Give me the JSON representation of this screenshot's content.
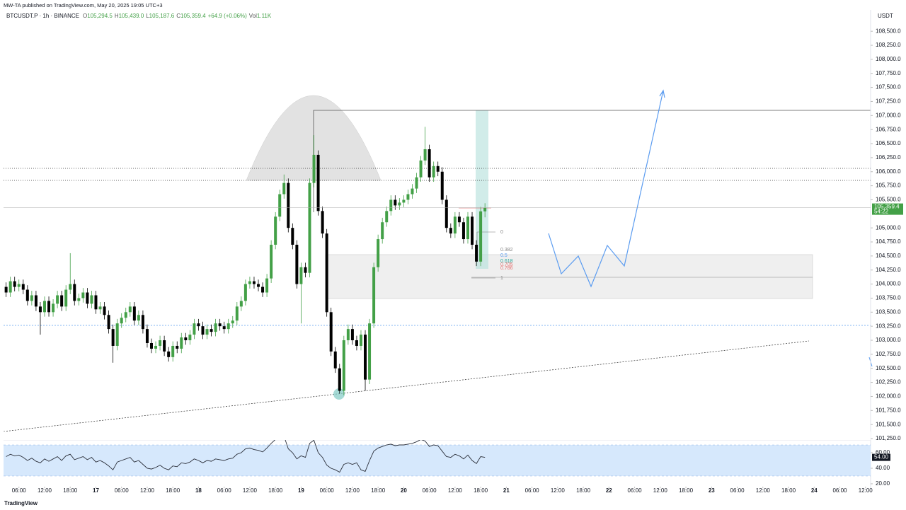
{
  "header": "MW-TA published on TradingView.com, May 20, 2025 19:05 UTC+3",
  "footer": "TradingView",
  "chart_data": {
    "type": "candlestick",
    "symbol": "BTCUSDT.P · 1h · BINANCE",
    "currency": "USDT",
    "legend_values": {
      "open_label": "O",
      "open": "105,294.5",
      "high_label": "H",
      "high": "105,439.0",
      "low_label": "L",
      "low": "105,187.6",
      "close_label": "C",
      "close": "105,359.4",
      "change": "+64.9 (+0.06%)",
      "volume_label": "Vol",
      "volume": "1.11K"
    },
    "last_price_label": "105,359.4",
    "countdown": "54:22",
    "up_color": "#43a047",
    "down_color": "#000000",
    "ohlc": [
      [
        103950,
        104030,
        103770,
        103850
      ],
      [
        103850,
        104130,
        103770,
        104050
      ],
      [
        104050,
        104130,
        103870,
        103950
      ],
      [
        103950,
        104080,
        103870,
        104000
      ],
      [
        104000,
        104080,
        103820,
        103900
      ],
      [
        103900,
        103980,
        103620,
        103700
      ],
      [
        103700,
        103880,
        103620,
        103800
      ],
      [
        103800,
        103880,
        103520,
        103600
      ],
      [
        103600,
        103680,
        103100,
        103500
      ],
      [
        103500,
        103780,
        103420,
        103700
      ],
      [
        103700,
        103780,
        103420,
        103500
      ],
      [
        103500,
        103730,
        103420,
        103650
      ],
      [
        103650,
        103880,
        103570,
        103800
      ],
      [
        103800,
        103880,
        103520,
        103600
      ],
      [
        103600,
        103980,
        103520,
        103900
      ],
      [
        103900,
        104550,
        103820,
        104000
      ],
      [
        104000,
        104080,
        103620,
        103700
      ],
      [
        103700,
        103830,
        103620,
        103750
      ],
      [
        103750,
        103930,
        103670,
        103850
      ],
      [
        103850,
        103930,
        103570,
        103650
      ],
      [
        103650,
        103880,
        103570,
        103800
      ],
      [
        103800,
        103880,
        103470,
        103550
      ],
      [
        103550,
        103680,
        103470,
        103600
      ],
      [
        103600,
        103680,
        103370,
        103450
      ],
      [
        103450,
        103530,
        103120,
        103200
      ],
      [
        103200,
        103280,
        102600,
        102900
      ],
      [
        102900,
        103380,
        102820,
        103300
      ],
      [
        103300,
        103480,
        103220,
        103400
      ],
      [
        103400,
        103580,
        103320,
        103500
      ],
      [
        103500,
        103680,
        103420,
        103600
      ],
      [
        103600,
        103680,
        103270,
        103350
      ],
      [
        103350,
        103530,
        103270,
        103450
      ],
      [
        103450,
        103530,
        103120,
        103200
      ],
      [
        103200,
        103280,
        102870,
        102950
      ],
      [
        102950,
        103030,
        102770,
        102850
      ],
      [
        102850,
        102980,
        102770,
        102900
      ],
      [
        102900,
        103080,
        102820,
        103000
      ],
      [
        103000,
        103080,
        102720,
        102800
      ],
      [
        102800,
        102880,
        102620,
        102700
      ],
      [
        102700,
        102980,
        102620,
        102900
      ],
      [
        102900,
        102980,
        102770,
        102850
      ],
      [
        102850,
        103130,
        102770,
        103050
      ],
      [
        103050,
        103130,
        102920,
        103000
      ],
      [
        103000,
        103180,
        102920,
        103100
      ],
      [
        103100,
        103380,
        103020,
        103300
      ],
      [
        103300,
        103380,
        103170,
        103250
      ],
      [
        103250,
        103330,
        103020,
        103100
      ],
      [
        103100,
        103280,
        103020,
        103200
      ],
      [
        103200,
        103280,
        103070,
        103150
      ],
      [
        103150,
        103380,
        103070,
        103300
      ],
      [
        103300,
        103380,
        103170,
        103250
      ],
      [
        103250,
        103330,
        103120,
        103200
      ],
      [
        103200,
        103380,
        103120,
        103300
      ],
      [
        103300,
        103430,
        103220,
        103350
      ],
      [
        103350,
        103680,
        103270,
        103600
      ],
      [
        103600,
        103780,
        103520,
        103700
      ],
      [
        103700,
        104080,
        103620,
        104000
      ],
      [
        104000,
        104130,
        103920,
        104050
      ],
      [
        104050,
        104130,
        103920,
        104000
      ],
      [
        104000,
        104080,
        103870,
        103950
      ],
      [
        103950,
        104030,
        103770,
        103850
      ],
      [
        103850,
        104180,
        103770,
        104100
      ],
      [
        104100,
        104780,
        104020,
        104700
      ],
      [
        104700,
        105280,
        104620,
        105200
      ],
      [
        105200,
        105680,
        105120,
        105600
      ],
      [
        105600,
        105950,
        105520,
        105800
      ],
      [
        105800,
        105880,
        104920,
        105000
      ],
      [
        105000,
        105080,
        104620,
        104700
      ],
      [
        104700,
        104780,
        103920,
        104000
      ],
      [
        104000,
        104380,
        103300,
        104300
      ],
      [
        104300,
        104380,
        104120,
        104200
      ],
      [
        104200,
        105880,
        104120,
        105800
      ],
      [
        105800,
        106650,
        105720,
        106300
      ],
      [
        106300,
        106380,
        105220,
        105300
      ],
      [
        105300,
        105380,
        104820,
        104900
      ],
      [
        104900,
        104980,
        103420,
        103500
      ],
      [
        103500,
        103580,
        102720,
        102800
      ],
      [
        102800,
        102880,
        102420,
        102500
      ],
      [
        102500,
        102580,
        102050,
        102100
      ],
      [
        102100,
        103080,
        102020,
        103000
      ],
      [
        103000,
        103280,
        102920,
        103200
      ],
      [
        103200,
        103280,
        102920,
        103000
      ],
      [
        103000,
        103080,
        102820,
        102900
      ],
      [
        102900,
        103180,
        102820,
        103100
      ],
      [
        103100,
        103180,
        102100,
        102300
      ],
      [
        102300,
        103380,
        102220,
        103300
      ],
      [
        103300,
        104380,
        103220,
        104300
      ],
      [
        104300,
        104880,
        104220,
        104800
      ],
      [
        104800,
        105180,
        104720,
        105100
      ],
      [
        105100,
        105380,
        105020,
        105300
      ],
      [
        105300,
        105580,
        105220,
        105500
      ],
      [
        105500,
        105580,
        105320,
        105400
      ],
      [
        105400,
        105530,
        105320,
        105450
      ],
      [
        105450,
        105580,
        105370,
        105500
      ],
      [
        105500,
        105680,
        105420,
        105600
      ],
      [
        105600,
        105780,
        105520,
        105700
      ],
      [
        105700,
        105980,
        105620,
        105900
      ],
      [
        105900,
        106280,
        105820,
        106200
      ],
      [
        106200,
        106800,
        106120,
        106400
      ],
      [
        106400,
        106480,
        105820,
        105900
      ],
      [
        105900,
        106180,
        105820,
        106100
      ],
      [
        106100,
        106180,
        105920,
        106000
      ],
      [
        106000,
        106080,
        105420,
        105500
      ],
      [
        105500,
        105580,
        104920,
        105000
      ],
      [
        105000,
        105080,
        104820,
        104900
      ],
      [
        104900,
        105280,
        104820,
        105200
      ],
      [
        105200,
        105280,
        105020,
        105100
      ],
      [
        105100,
        105180,
        104720,
        104800
      ],
      [
        104800,
        105280,
        104720,
        105200
      ],
      [
        105200,
        105280,
        104620,
        104700
      ],
      [
        104700,
        104780,
        104320,
        104400
      ],
      [
        104400,
        105374.5,
        104320,
        105294.5
      ],
      [
        105294.5,
        105439,
        105187.6,
        105359.4
      ]
    ],
    "xlim": [
      -0.6,
      202.2
    ],
    "xticks": [
      {
        "value": 3,
        "label": "06:00"
      },
      {
        "value": 9,
        "label": "12:00"
      },
      {
        "value": 15,
        "label": "18:00"
      },
      {
        "value": 21,
        "label": "17"
      },
      {
        "value": 27,
        "label": "06:00"
      },
      {
        "value": 33,
        "label": "12:00"
      },
      {
        "value": 39,
        "label": "18:00"
      },
      {
        "value": 45,
        "label": "18"
      },
      {
        "value": 51,
        "label": "06:00"
      },
      {
        "value": 57,
        "label": "12:00"
      },
      {
        "value": 63,
        "label": "18:00"
      },
      {
        "value": 69,
        "label": "19"
      },
      {
        "value": 75,
        "label": "06:00"
      },
      {
        "value": 81,
        "label": "12:00"
      },
      {
        "value": 87,
        "label": "18:00"
      },
      {
        "value": 93,
        "label": "20"
      },
      {
        "value": 99,
        "label": "06:00"
      },
      {
        "value": 105,
        "label": "12:00"
      },
      {
        "value": 111,
        "label": "18:00"
      },
      {
        "value": 117,
        "label": "21"
      },
      {
        "value": 123,
        "label": "06:00"
      },
      {
        "value": 129,
        "label": "12:00"
      },
      {
        "value": 135,
        "label": "18:00"
      },
      {
        "value": 141,
        "label": "22"
      },
      {
        "value": 147,
        "label": "06:00"
      },
      {
        "value": 153,
        "label": "12:00"
      },
      {
        "value": 159,
        "label": "18:00"
      },
      {
        "value": 165,
        "label": "23"
      },
      {
        "value": 171,
        "label": "06:00"
      },
      {
        "value": 177,
        "label": "12:00"
      },
      {
        "value": 183,
        "label": "18:00"
      },
      {
        "value": 189,
        "label": "24"
      },
      {
        "value": 195,
        "label": "06:00"
      },
      {
        "value": 201,
        "label": "12:00"
      }
    ],
    "ylim": [
      101225,
      108880
    ],
    "yticks": [
      {
        "value": 101250,
        "label": "101,250.0"
      },
      {
        "value": 101500,
        "label": "101,500.0"
      },
      {
        "value": 101750,
        "label": "101,750.0"
      },
      {
        "value": 102000,
        "label": "102,000.0"
      },
      {
        "value": 102250,
        "label": "102,250.0"
      },
      {
        "value": 102500,
        "label": "102,500.0"
      },
      {
        "value": 102750,
        "label": "102,750.0"
      },
      {
        "value": 103000,
        "label": "103,000.0"
      },
      {
        "value": 103250,
        "label": "103,250.0"
      },
      {
        "value": 103500,
        "label": "103,500.0"
      },
      {
        "value": 103750,
        "label": "103,750.0"
      },
      {
        "value": 104000,
        "label": "104,000.0"
      },
      {
        "value": 104250,
        "label": "104,250.0"
      },
      {
        "value": 104500,
        "label": "104,500.0"
      },
      {
        "value": 104750,
        "label": "104,750.0"
      },
      {
        "value": 105000,
        "label": "105,000.0"
      },
      {
        "value": 105500,
        "label": "105,500.0"
      },
      {
        "value": 105750,
        "label": "105,750.0"
      },
      {
        "value": 106000,
        "label": "106,000.0"
      },
      {
        "value": 106250,
        "label": "106,250.0"
      },
      {
        "value": 106500,
        "label": "106,500.0"
      },
      {
        "value": 106750,
        "label": "106,750.0"
      },
      {
        "value": 107000,
        "label": "107,000.0"
      },
      {
        "value": 107250,
        "label": "107,250.0"
      },
      {
        "value": 107500,
        "label": "107,500.0"
      },
      {
        "value": 107750,
        "label": "107,750.0"
      },
      {
        "value": 108000,
        "label": "108,000.0"
      },
      {
        "value": 108250,
        "label": "108,250.0"
      },
      {
        "value": 108500,
        "label": "108,500.0"
      }
    ],
    "fib_levels": [
      "0",
      "0.382",
      "0.5",
      "0.618",
      "0.705",
      "0.786",
      "1"
    ],
    "rsi": {
      "color": "#2a2e39",
      "band_color": "#d6e8fc",
      "values": [
        55,
        58,
        56,
        57,
        54,
        50,
        53,
        49,
        47,
        52,
        49,
        52,
        55,
        50,
        56,
        58,
        51,
        53,
        55,
        51,
        54,
        48,
        50,
        47,
        43,
        38,
        48,
        50,
        52,
        54,
        48,
        50,
        45,
        40,
        39,
        41,
        44,
        40,
        38,
        43,
        42,
        47,
        46,
        48,
        52,
        50,
        47,
        50,
        49,
        52,
        51,
        50,
        52,
        53,
        58,
        60,
        65,
        66,
        64,
        63,
        61,
        66,
        72,
        77,
        80,
        81,
        65,
        60,
        52,
        56,
        54,
        72,
        76,
        60,
        54,
        44,
        40,
        38,
        35,
        45,
        47,
        45,
        47,
        38,
        36,
        50,
        62,
        66,
        68,
        70,
        71,
        69,
        70,
        70,
        71,
        72,
        74,
        77,
        75,
        68,
        70,
        69,
        62,
        55,
        54,
        58,
        56,
        52,
        57,
        50,
        46,
        55,
        54
      ],
      "last_label": "54.00",
      "band": [
        30,
        70
      ],
      "ylim": [
        14.5,
        76.4
      ],
      "yticks": [
        {
          "value": 60,
          "label": "60.00"
        },
        {
          "value": 40,
          "label": "40.00"
        },
        {
          "value": 20,
          "label": "20.00"
        }
      ]
    }
  }
}
